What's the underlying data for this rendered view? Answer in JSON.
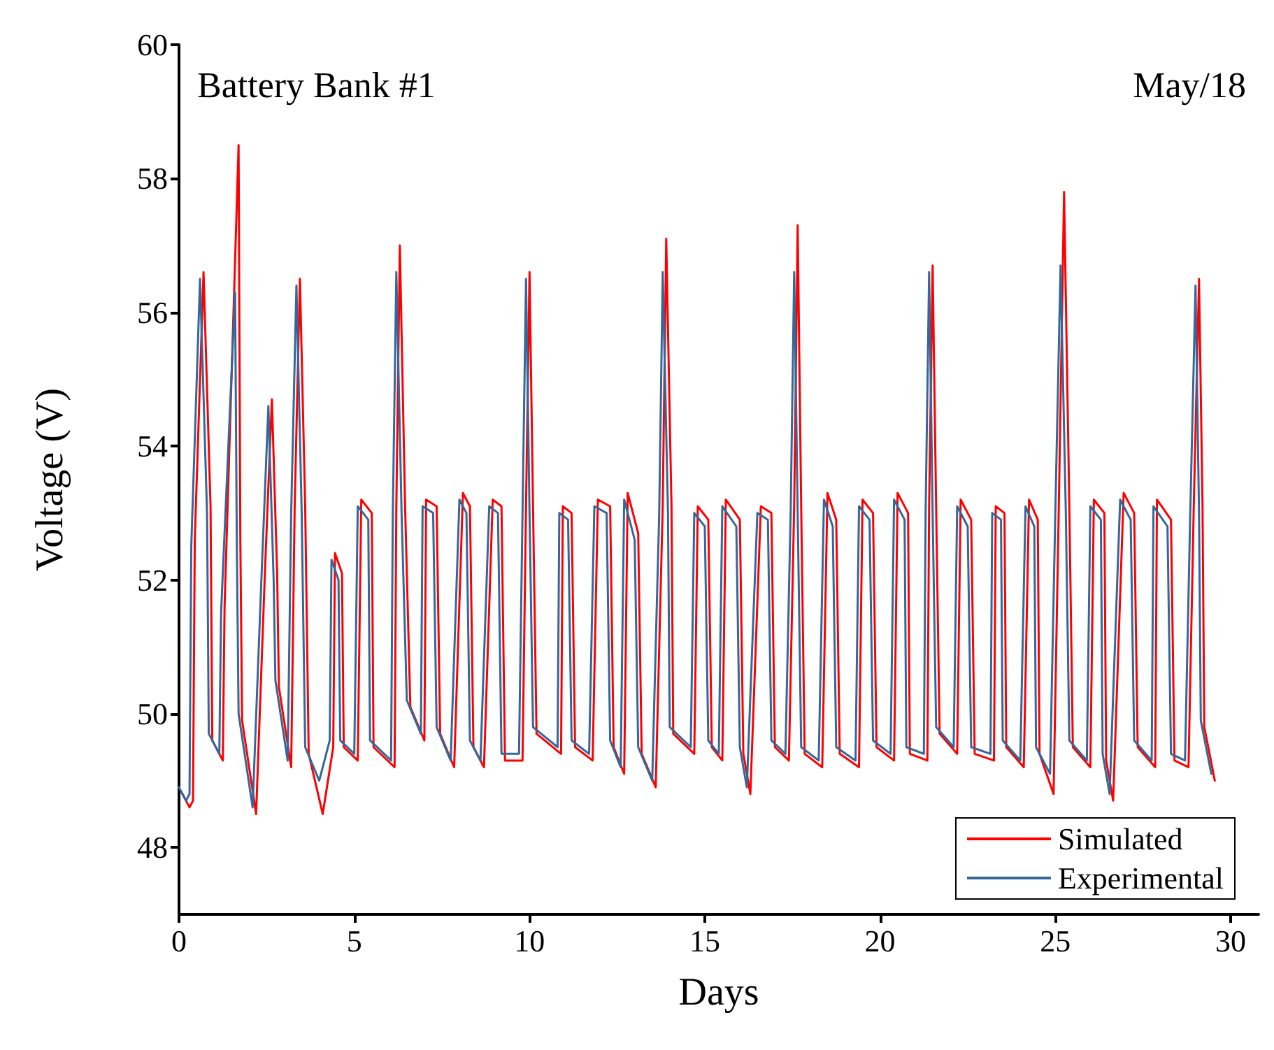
{
  "chart_data": {
    "type": "line",
    "xlabel": "Days",
    "ylabel": "Voltage (V)",
    "annotations": [
      "Battery Bank #1",
      "May/18"
    ],
    "xlim": [
      0,
      30.8
    ],
    "xticks": [
      0,
      5,
      10,
      15,
      20,
      25,
      30
    ],
    "ylim": [
      47,
      60
    ],
    "yticks": [
      48,
      50,
      52,
      54,
      56,
      58,
      60
    ],
    "grid": false,
    "legend": "bottom right",
    "marker": "none",
    "line_style": "solid",
    "series": [
      {
        "name": "Simulated",
        "color": "#ff0000",
        "x": [
          0.1,
          0.3,
          0.4,
          0.45,
          0.7,
          0.9,
          0.95,
          1.25,
          1.3,
          1.7,
          1.75,
          1.8,
          2.2,
          2.45,
          2.65,
          2.8,
          2.85,
          3.2,
          3.3,
          3.45,
          3.6,
          3.7,
          4.1,
          4.4,
          4.45,
          4.65,
          4.7,
          5.1,
          5.2,
          5.5,
          5.55,
          6.15,
          6.2,
          6.3,
          6.45,
          6.6,
          7.0,
          7.05,
          7.35,
          7.45,
          7.85,
          8.1,
          8.3,
          8.4,
          8.7,
          8.95,
          9.2,
          9.3,
          9.8,
          9.9,
          10.0,
          10.1,
          10.2,
          10.9,
          10.95,
          11.2,
          11.3,
          11.8,
          11.95,
          12.3,
          12.4,
          12.7,
          12.8,
          13.1,
          13.2,
          13.6,
          13.8,
          13.9,
          14.05,
          14.1,
          14.7,
          14.8,
          15.1,
          15.2,
          15.5,
          15.6,
          16.0,
          16.1,
          16.3,
          16.6,
          16.9,
          17.0,
          17.4,
          17.55,
          17.65,
          17.75,
          17.85,
          18.35,
          18.5,
          18.75,
          18.85,
          19.4,
          19.5,
          19.8,
          19.9,
          20.4,
          20.5,
          20.8,
          20.85,
          21.35,
          21.4,
          21.5,
          21.6,
          21.7,
          22.2,
          22.3,
          22.6,
          22.7,
          23.25,
          23.3,
          23.55,
          23.6,
          24.1,
          24.25,
          24.5,
          24.55,
          24.95,
          25.1,
          25.25,
          25.4,
          25.5,
          26.0,
          26.1,
          26.4,
          26.45,
          26.65,
          26.95,
          27.25,
          27.35,
          27.85,
          27.9,
          28.3,
          28.4,
          28.8,
          28.95,
          29.1,
          29.2,
          29.25,
          29.55
        ],
        "values": [
          48.8,
          48.6,
          48.7,
          52.6,
          56.6,
          53.1,
          49.6,
          49.3,
          51.6,
          58.5,
          52.6,
          49.9,
          48.5,
          52.1,
          54.7,
          52.1,
          50.4,
          49.2,
          53.1,
          56.5,
          53.1,
          49.4,
          48.5,
          49.5,
          52.4,
          52.1,
          49.5,
          49.3,
          53.2,
          53.0,
          49.5,
          49.2,
          53.1,
          57.0,
          53.1,
          50.1,
          49.6,
          53.2,
          53.1,
          49.7,
          49.2,
          53.3,
          53.1,
          49.5,
          49.2,
          53.2,
          53.1,
          49.3,
          49.3,
          53.1,
          56.6,
          53.1,
          49.7,
          49.4,
          53.1,
          53.0,
          49.5,
          49.3,
          53.2,
          53.1,
          49.5,
          49.1,
          53.3,
          52.7,
          49.4,
          48.9,
          53.1,
          57.1,
          53.1,
          49.7,
          49.4,
          53.1,
          52.9,
          49.5,
          49.3,
          53.2,
          52.9,
          49.4,
          48.8,
          53.1,
          53.0,
          49.5,
          49.3,
          53.1,
          57.3,
          53.1,
          49.4,
          49.2,
          53.3,
          52.9,
          49.4,
          49.2,
          53.2,
          53.0,
          49.5,
          49.3,
          53.3,
          53.0,
          49.4,
          49.3,
          53.1,
          56.7,
          53.1,
          49.7,
          49.4,
          53.2,
          52.9,
          49.4,
          49.3,
          53.1,
          53.0,
          49.5,
          49.2,
          53.2,
          52.9,
          49.4,
          48.8,
          53.1,
          57.8,
          53.1,
          49.5,
          49.2,
          53.2,
          53.0,
          49.3,
          48.7,
          53.3,
          53.0,
          49.5,
          49.2,
          53.2,
          52.9,
          49.3,
          49.2,
          53.1,
          56.5,
          53.1,
          49.8,
          49.0
        ]
      },
      {
        "name": "Experimental",
        "color": "#34679a",
        "x": [
          0,
          0.2,
          0.3,
          0.35,
          0.6,
          0.8,
          0.85,
          1.15,
          1.2,
          1.6,
          1.65,
          1.7,
          2.1,
          2.35,
          2.55,
          2.7,
          2.75,
          3.1,
          3.2,
          3.35,
          3.5,
          3.6,
          4.0,
          4.3,
          4.35,
          4.55,
          4.6,
          5.0,
          5.1,
          5.4,
          5.45,
          6.05,
          6.1,
          6.2,
          6.35,
          6.5,
          6.9,
          6.95,
          7.25,
          7.35,
          7.75,
          8.0,
          8.2,
          8.3,
          8.6,
          8.85,
          9.1,
          9.2,
          9.7,
          9.8,
          9.9,
          10.0,
          10.1,
          10.8,
          10.85,
          11.1,
          11.2,
          11.7,
          11.85,
          12.2,
          12.3,
          12.6,
          12.7,
          13.0,
          13.1,
          13.5,
          13.7,
          13.8,
          13.95,
          14.0,
          14.6,
          14.7,
          15.0,
          15.1,
          15.4,
          15.5,
          15.9,
          16.0,
          16.2,
          16.5,
          16.8,
          16.9,
          17.3,
          17.45,
          17.55,
          17.65,
          17.75,
          18.25,
          18.4,
          18.65,
          18.75,
          19.3,
          19.4,
          19.7,
          19.8,
          20.3,
          20.4,
          20.7,
          20.75,
          21.25,
          21.3,
          21.4,
          21.5,
          21.6,
          22.1,
          22.2,
          22.5,
          22.6,
          23.15,
          23.2,
          23.45,
          23.5,
          24.0,
          24.15,
          24.4,
          24.45,
          24.85,
          25.0,
          25.15,
          25.3,
          25.4,
          25.9,
          26.0,
          26.3,
          26.35,
          26.55,
          26.85,
          27.15,
          27.25,
          27.75,
          27.8,
          28.2,
          28.3,
          28.7,
          28.85,
          29.0,
          29.1,
          29.15,
          29.45
        ],
        "values": [
          48.9,
          48.7,
          48.8,
          52.5,
          56.5,
          53.0,
          49.7,
          49.4,
          51.5,
          56.3,
          52.5,
          50.0,
          48.6,
          52.0,
          54.6,
          52.0,
          50.5,
          49.3,
          53.0,
          56.4,
          53.0,
          49.5,
          49.0,
          49.6,
          52.3,
          52.0,
          49.6,
          49.4,
          53.1,
          52.9,
          49.6,
          49.3,
          53.0,
          56.6,
          53.0,
          50.2,
          49.7,
          53.1,
          53.0,
          49.8,
          49.3,
          53.2,
          53.0,
          49.6,
          49.3,
          53.1,
          53.0,
          49.4,
          49.4,
          53.0,
          56.5,
          53.0,
          49.8,
          49.5,
          53.0,
          52.9,
          49.6,
          49.4,
          53.1,
          53.0,
          49.6,
          49.2,
          53.2,
          52.6,
          49.5,
          49.0,
          53.0,
          56.6,
          53.0,
          49.8,
          49.5,
          53.0,
          52.8,
          49.6,
          49.4,
          53.1,
          52.8,
          49.5,
          48.9,
          53.0,
          52.9,
          49.6,
          49.4,
          53.0,
          56.6,
          53.0,
          49.5,
          49.3,
          53.2,
          52.8,
          49.5,
          49.3,
          53.1,
          52.9,
          49.6,
          49.4,
          53.2,
          52.9,
          49.5,
          49.4,
          53.0,
          56.6,
          53.0,
          49.8,
          49.5,
          53.1,
          52.8,
          49.5,
          49.4,
          53.0,
          52.9,
          49.6,
          49.3,
          53.1,
          52.8,
          49.5,
          49.1,
          53.0,
          56.7,
          53.0,
          49.6,
          49.3,
          53.1,
          52.9,
          49.4,
          48.8,
          53.2,
          52.9,
          49.6,
          49.3,
          53.1,
          52.8,
          49.4,
          49.3,
          53.0,
          56.4,
          53.0,
          49.9,
          49.1
        ]
      }
    ]
  }
}
